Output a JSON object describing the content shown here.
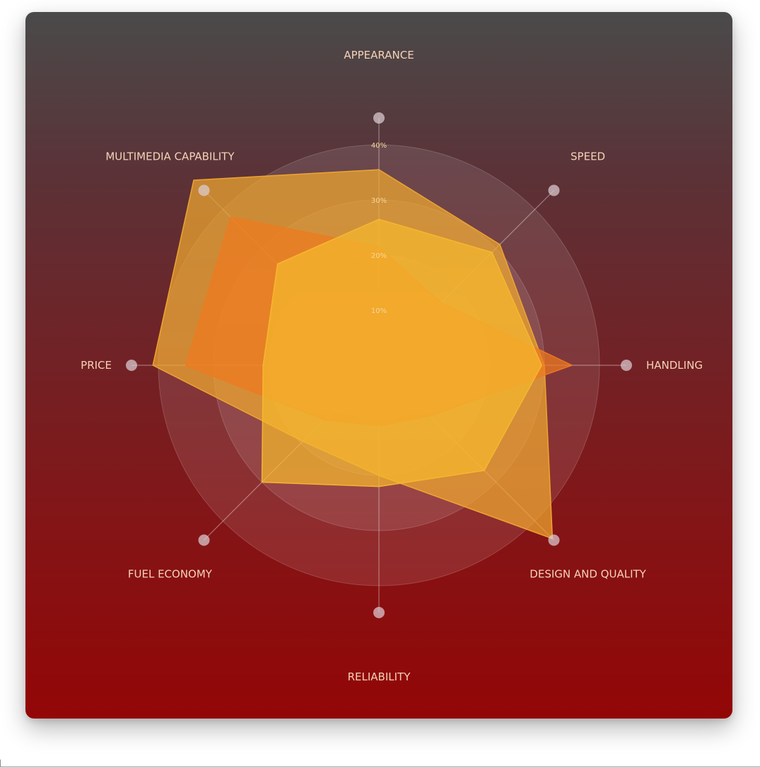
{
  "chart_data": {
    "type": "radar",
    "axes": [
      "APPEARANCE",
      "SPEED",
      "HANDLING",
      "DESIGN AND QUALITY",
      "RELIABILITY",
      "FUEL ECONOMY",
      "PRICE",
      "MULTIMEDIA CAPABILITY"
    ],
    "ticks": [
      "10%",
      "20%",
      "30%",
      "40%"
    ],
    "rlim": [
      0,
      45
    ],
    "grid": true,
    "legend": "none",
    "series": [
      {
        "values": [
          35.5,
          31,
          30,
          44.5,
          20,
          19.5,
          41,
          47.5
        ],
        "color": "#f0a830"
      },
      {
        "values": [
          21.5,
          16,
          35,
          13,
          11,
          14,
          35,
          38
        ],
        "color": "#ee7a20"
      },
      {
        "values": [
          26.5,
          29,
          29.5,
          27,
          22,
          30,
          21,
          26
        ],
        "color": "#f5b82e"
      }
    ]
  }
}
